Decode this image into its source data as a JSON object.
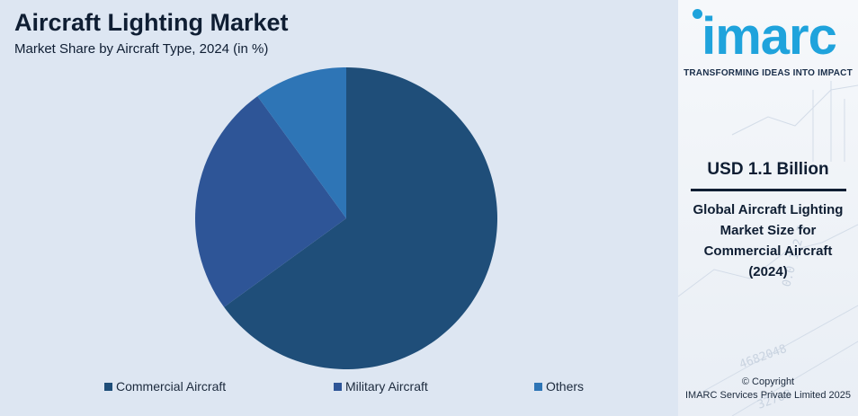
{
  "header": {
    "title": "Aircraft Lighting Market",
    "subtitle": "Market Share by Aircraft Type, 2024 (in %)"
  },
  "chart_data": {
    "type": "pie",
    "title": "Aircraft Lighting Market",
    "subtitle": "Market Share by Aircraft Type, 2024 (in %)",
    "categories": [
      "Commercial Aircraft",
      "Military Aircraft",
      "Others"
    ],
    "values": [
      65,
      25,
      10
    ],
    "colors": [
      "#1f4e79",
      "#2e5597",
      "#2e75b6"
    ],
    "start_angle_deg": 0,
    "direction": "clockwise",
    "legend_position": "bottom"
  },
  "sidebar": {
    "logo_text": "imarc",
    "tagline": "TRANSFORMING IDEAS INTO IMPACT",
    "stat_value": "USD 1.1 Billion",
    "stat_caption": "Global Aircraft Lighting Market Size for Commercial Aircraft (2024)",
    "copyright_line1": "© Copyright",
    "copyright_line2": "IMARC Services Private Limited 2025",
    "accent_color": "#1fa3dc"
  }
}
